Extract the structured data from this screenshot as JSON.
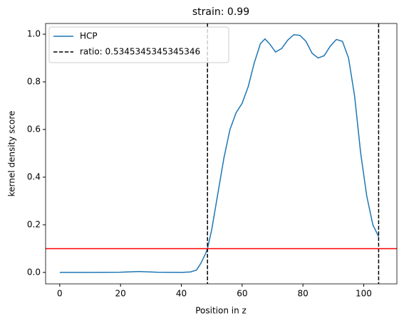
{
  "chart_data": {
    "type": "line",
    "title": "strain: 0.99",
    "xlabel": "Position in z",
    "ylabel": "kernel density score",
    "xlim": [
      -4.65,
      110.9
    ],
    "ylim": [
      -0.048,
      1.045
    ],
    "xticks": [
      0,
      20,
      40,
      60,
      80,
      100
    ],
    "yticks": [
      {
        "value": 0,
        "label": "0.0"
      },
      {
        "value": 0.2,
        "label": "0.2"
      },
      {
        "value": 0.4,
        "label": "0.4"
      },
      {
        "value": 0.6,
        "label": "0.6"
      },
      {
        "value": 0.8,
        "label": "0.8"
      },
      {
        "value": 1,
        "label": "1.0"
      }
    ],
    "legend": "upper left",
    "series": [
      {
        "name": "HCP",
        "color": "#1f77b4",
        "x": [
          0,
          10,
          20,
          26,
          32,
          40,
          43,
          45,
          46.5,
          48,
          48.6,
          50,
          52,
          54,
          56,
          58,
          60,
          62,
          64,
          66,
          67.5,
          69,
          71,
          73,
          75,
          77,
          79,
          81,
          83,
          85,
          87,
          89,
          91,
          93,
          95,
          97,
          99,
          101,
          103,
          104.9
        ],
        "values": [
          0,
          0,
          0.001,
          0.004,
          0.001,
          0,
          0.002,
          0.01,
          0.04,
          0.08,
          0.1,
          0.18,
          0.33,
          0.48,
          0.6,
          0.67,
          0.71,
          0.78,
          0.88,
          0.96,
          0.98,
          0.96,
          0.925,
          0.94,
          0.975,
          0.998,
          0.995,
          0.97,
          0.92,
          0.9,
          0.91,
          0.95,
          0.978,
          0.97,
          0.9,
          0.74,
          0.5,
          0.32,
          0.2,
          0.15
        ]
      },
      {
        "name": "ratio: 0.5345345345345346",
        "color": "#000000",
        "style": "dashed",
        "vlines": [
          48.6,
          104.9
        ]
      }
    ],
    "hline": {
      "value": 0.1,
      "color": "#ff0000"
    }
  }
}
